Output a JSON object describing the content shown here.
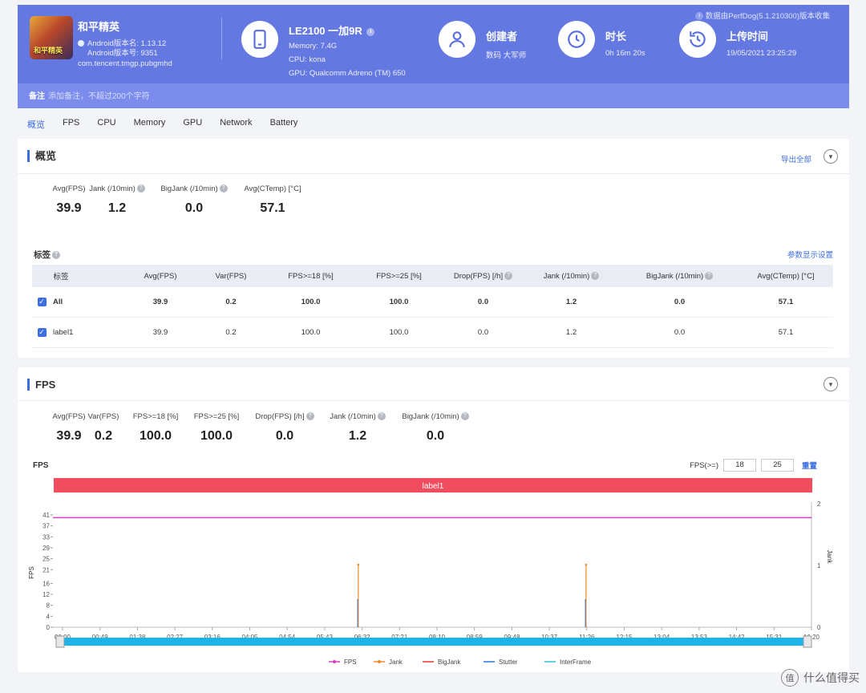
{
  "header": {
    "game_name": "和平精英",
    "game_icon_text": "和平精英",
    "android_version_name": "Android版本名: 1.13.12",
    "android_version_code": "Android版本号: 9351",
    "package": "com.tencent.tmgp.pubgmhd",
    "collect_note": "数据由PerfDog(5.1.210300)版本收集",
    "device_model": "LE2100 一加9R",
    "memory": "Memory: 7.4G",
    "cpu": "CPU: kona",
    "gpu": "GPU: Qualcomm Adreno (TM) 650",
    "creator_label": "创建者",
    "creator_value": "数码 大军师",
    "duration_label": "时长",
    "duration_value": "0h 16m 20s",
    "upload_label": "上传时间",
    "upload_value": "19/05/2021 23:25:29",
    "note_label": "备注",
    "note_placeholder": "添加备注，不超过200个字符"
  },
  "tabs": [
    "概览",
    "FPS",
    "CPU",
    "Memory",
    "GPU",
    "Network",
    "Battery"
  ],
  "overview": {
    "title": "概览",
    "export_label": "导出全部",
    "stats": [
      {
        "label": "Avg(FPS)",
        "value": "39.9"
      },
      {
        "label": "Jank (/10min)",
        "value": "1.2"
      },
      {
        "label": "BigJank (/10min)",
        "value": "0.0"
      },
      {
        "label": "Avg(CTemp) [°C]",
        "value": "57.1"
      }
    ],
    "tag_title": "标签",
    "param_setting": "参数显示设置",
    "table": {
      "headers": [
        "标签",
        "Avg(FPS)",
        "Var(FPS)",
        "FPS>=18 [%]",
        "FPS>=25 [%]",
        "Drop(FPS) [/h]",
        "Jank (/10min)",
        "BigJank (/10min)",
        "Avg(CTemp) [°C]"
      ],
      "rows": [
        [
          "All",
          "39.9",
          "0.2",
          "100.0",
          "100.0",
          "0.0",
          "1.2",
          "0.0",
          "57.1"
        ],
        [
          "label1",
          "39.9",
          "0.2",
          "100.0",
          "100.0",
          "0.0",
          "1.2",
          "0.0",
          "57.1"
        ]
      ]
    }
  },
  "fps_section": {
    "title": "FPS",
    "stats": [
      {
        "label": "Avg(FPS)",
        "value": "39.9"
      },
      {
        "label": "Var(FPS)",
        "value": "0.2"
      },
      {
        "label": "FPS>=18 [%]",
        "value": "100.0"
      },
      {
        "label": "FPS>=25 [%]",
        "value": "100.0"
      },
      {
        "label": "Drop(FPS) [/h]",
        "value": "0.0"
      },
      {
        "label": "Jank (/10min)",
        "value": "1.2"
      },
      {
        "label": "BigJank (/10min)",
        "value": "0.0"
      }
    ],
    "chart_label": "FPS",
    "threshold_label": "FPS(>=)",
    "threshold_1": "18",
    "threshold_2": "25",
    "reset_label": "重置"
  },
  "chart_data": {
    "type": "line",
    "band_label": "label1",
    "ylabel": "FPS",
    "y2label": "Jank",
    "ylim": [
      0,
      41
    ],
    "y2lim": [
      0,
      2
    ],
    "y_ticks": [
      0,
      4,
      8,
      12,
      16,
      21,
      25,
      29,
      33,
      37,
      41
    ],
    "y2_ticks": [
      0,
      1,
      2
    ],
    "x_ticks": [
      "00:00",
      "00:49",
      "01:38",
      "02:27",
      "03:16",
      "04:05",
      "04:54",
      "05:43",
      "06:32",
      "07:21",
      "08:10",
      "08:59",
      "09:48",
      "10:37",
      "11:26",
      "12:15",
      "13:04",
      "13:53",
      "14:42",
      "15:31",
      "16:20"
    ],
    "x_range_seconds": [
      0,
      980
    ],
    "series": [
      {
        "name": "FPS",
        "color": "#d63fbf",
        "approx_value": 40
      },
      {
        "name": "Jank",
        "color": "#f08a2a",
        "spikes_at": [
          "06:27",
          "11:25"
        ],
        "spike_value": 1
      },
      {
        "name": "BigJank",
        "color": "#e8382e"
      },
      {
        "name": "Stutter",
        "color": "#2f6fd8"
      },
      {
        "name": "InterFrame",
        "color": "#23c2d6"
      }
    ],
    "legend_position": "bottom"
  },
  "watermark": "什么值得买",
  "watermark_icon": "值"
}
